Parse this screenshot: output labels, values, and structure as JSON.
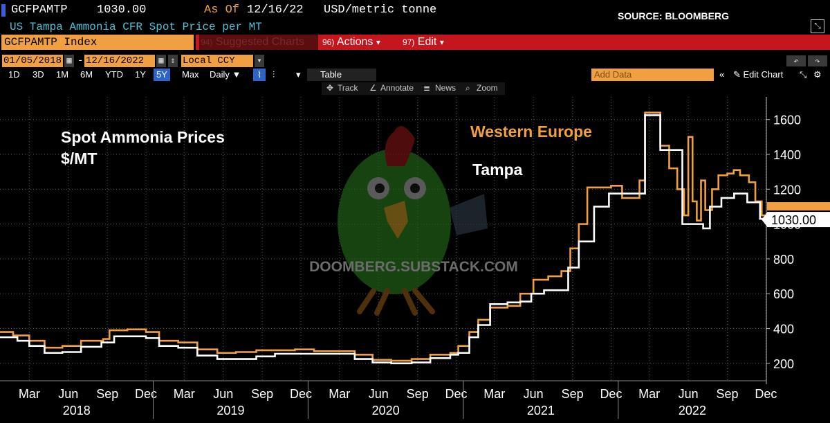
{
  "header": {
    "ticker": "GCFPAMTP",
    "price": "1030.00",
    "as_of_label": "As Of",
    "as_of_date": "12/16/22",
    "unit": "USD/metric tonne",
    "source": "SOURCE: BLOOMBERG",
    "description": "US Tampa Ammonia CFR Spot Price per MT"
  },
  "menu": {
    "index_label": "GCFPAMTP Index",
    "suggested": {
      "num": "94)",
      "label": "Suggested Charts"
    },
    "actions": {
      "num": "96)",
      "label": "Actions",
      "arrow": "▾"
    },
    "edit": {
      "num": "97)",
      "label": "Edit",
      "arrow": "▾"
    }
  },
  "dates": {
    "start": "01/05/2018",
    "dash": "-",
    "end": "12/16/2022",
    "currency": "Local CCY"
  },
  "controls": {
    "periods": [
      "1D",
      "3D",
      "1M",
      "6M",
      "YTD",
      "1Y",
      "5Y",
      "Max"
    ],
    "selected_period": "5Y",
    "frequency": "Daily ▼",
    "table_label": "Table",
    "add_data_placeholder": "Add Data",
    "edit_chart_label": "Edit Chart"
  },
  "tools": {
    "track": "Track",
    "annotate": "Annotate",
    "news": "News",
    "zoom": "Zoom"
  },
  "watermark": "DOOMBERG.SUBSTACK.COM",
  "chart_data": {
    "type": "line",
    "title": "Spot Ammonia Prices",
    "subtitle": "$/MT",
    "ylabel": "",
    "xlabel": "",
    "ylim": [
      100,
      1730
    ],
    "yticks": [
      200,
      400,
      600,
      800,
      1000,
      1200,
      1400,
      1600
    ],
    "xlim": [
      "2018-01-05",
      "2022-12-16"
    ],
    "x_month_ticks": [
      "Mar",
      "Jun",
      "Sep",
      "Dec",
      "Mar",
      "Jun",
      "Sep",
      "Dec",
      "Mar",
      "Jun",
      "Sep",
      "Dec",
      "Mar",
      "Jun",
      "Sep",
      "Dec",
      "Mar",
      "Jun",
      "Sep",
      "Dec"
    ],
    "x_year_labels": [
      "2018",
      "2019",
      "2020",
      "2021",
      "2022"
    ],
    "last_value_label": "1030.00",
    "colors": {
      "western_europe": "#f0a040",
      "tampa": "#ffffff",
      "grid": "#5a5a5a"
    },
    "legend_position": "top-right",
    "series": [
      {
        "name": "Western Europe",
        "points": [
          [
            "2018-01-05",
            380
          ],
          [
            "2018-02-05",
            360
          ],
          [
            "2018-03-15",
            330
          ],
          [
            "2018-04-20",
            290
          ],
          [
            "2018-06-01",
            300
          ],
          [
            "2018-07-15",
            330
          ],
          [
            "2018-09-05",
            340
          ],
          [
            "2018-09-20",
            390
          ],
          [
            "2018-11-01",
            395
          ],
          [
            "2018-12-15",
            380
          ],
          [
            "2019-01-15",
            330
          ],
          [
            "2019-03-01",
            320
          ],
          [
            "2019-04-15",
            280
          ],
          [
            "2019-06-01",
            260
          ],
          [
            "2019-07-15",
            265
          ],
          [
            "2019-09-01",
            275
          ],
          [
            "2019-10-15",
            275
          ],
          [
            "2019-12-01",
            280
          ],
          [
            "2020-01-15",
            270
          ],
          [
            "2020-03-01",
            270
          ],
          [
            "2020-04-20",
            250
          ],
          [
            "2020-06-01",
            220
          ],
          [
            "2020-07-15",
            215
          ],
          [
            "2020-09-01",
            225
          ],
          [
            "2020-10-15",
            250
          ],
          [
            "2020-12-01",
            260
          ],
          [
            "2020-12-20",
            300
          ],
          [
            "2021-01-15",
            380
          ],
          [
            "2021-02-05",
            450
          ],
          [
            "2021-03-05",
            520
          ],
          [
            "2021-04-15",
            530
          ],
          [
            "2021-05-15",
            600
          ],
          [
            "2021-06-15",
            680
          ],
          [
            "2021-07-20",
            700
          ],
          [
            "2021-08-20",
            730
          ],
          [
            "2021-09-10",
            860
          ],
          [
            "2021-09-30",
            1000
          ],
          [
            "2021-10-20",
            1210
          ],
          [
            "2021-12-15",
            1220
          ],
          [
            "2022-01-10",
            1150
          ],
          [
            "2022-02-20",
            1250
          ],
          [
            "2022-03-05",
            1640
          ],
          [
            "2022-03-25",
            1640
          ],
          [
            "2022-04-10",
            1450
          ],
          [
            "2022-05-01",
            1320
          ],
          [
            "2022-05-20",
            1200
          ],
          [
            "2022-06-05",
            1050
          ],
          [
            "2022-06-15",
            1500
          ],
          [
            "2022-06-25",
            1130
          ],
          [
            "2022-07-05",
            1020
          ],
          [
            "2022-07-15",
            1250
          ],
          [
            "2022-07-25",
            1080
          ],
          [
            "2022-08-10",
            1200
          ],
          [
            "2022-08-25",
            1280
          ],
          [
            "2022-09-15",
            1290
          ],
          [
            "2022-09-30",
            1310
          ],
          [
            "2022-10-15",
            1280
          ],
          [
            "2022-11-05",
            1240
          ],
          [
            "2022-11-20",
            1130
          ],
          [
            "2022-12-05",
            1050
          ],
          [
            "2022-12-16",
            1050
          ]
        ]
      },
      {
        "name": "Tampa",
        "points": [
          [
            "2018-01-05",
            350
          ],
          [
            "2018-02-15",
            330
          ],
          [
            "2018-03-15",
            300
          ],
          [
            "2018-04-20",
            260
          ],
          [
            "2018-06-01",
            265
          ],
          [
            "2018-07-15",
            295
          ],
          [
            "2018-09-01",
            320
          ],
          [
            "2018-10-01",
            355
          ],
          [
            "2018-12-15",
            345
          ],
          [
            "2019-01-15",
            300
          ],
          [
            "2019-03-01",
            290
          ],
          [
            "2019-04-15",
            245
          ],
          [
            "2019-06-01",
            225
          ],
          [
            "2019-07-15",
            225
          ],
          [
            "2019-09-01",
            240
          ],
          [
            "2019-10-15",
            255
          ],
          [
            "2019-12-01",
            255
          ],
          [
            "2020-01-15",
            255
          ],
          [
            "2020-03-01",
            255
          ],
          [
            "2020-04-20",
            225
          ],
          [
            "2020-06-01",
            205
          ],
          [
            "2020-07-15",
            200
          ],
          [
            "2020-09-01",
            205
          ],
          [
            "2020-10-15",
            230
          ],
          [
            "2020-12-01",
            250
          ],
          [
            "2020-12-20",
            260
          ],
          [
            "2021-01-15",
            350
          ],
          [
            "2021-02-05",
            420
          ],
          [
            "2021-03-05",
            540
          ],
          [
            "2021-04-15",
            550
          ],
          [
            "2021-05-15",
            555
          ],
          [
            "2021-06-10",
            600
          ],
          [
            "2021-07-10",
            620
          ],
          [
            "2021-08-10",
            620
          ],
          [
            "2021-09-05",
            750
          ],
          [
            "2021-09-30",
            900
          ],
          [
            "2021-11-05",
            1100
          ],
          [
            "2021-12-10",
            1175
          ],
          [
            "2022-01-15",
            1175
          ],
          [
            "2022-02-15",
            1175
          ],
          [
            "2022-03-05",
            1625
          ],
          [
            "2022-03-25",
            1625
          ],
          [
            "2022-04-10",
            1425
          ],
          [
            "2022-05-10",
            1425
          ],
          [
            "2022-06-01",
            1000
          ],
          [
            "2022-07-01",
            1000
          ],
          [
            "2022-07-20",
            975
          ],
          [
            "2022-08-05",
            1100
          ],
          [
            "2022-09-01",
            1150
          ],
          [
            "2022-10-01",
            1175
          ],
          [
            "2022-11-01",
            1125
          ],
          [
            "2022-12-01",
            1030
          ],
          [
            "2022-12-16",
            1030
          ]
        ]
      }
    ]
  }
}
